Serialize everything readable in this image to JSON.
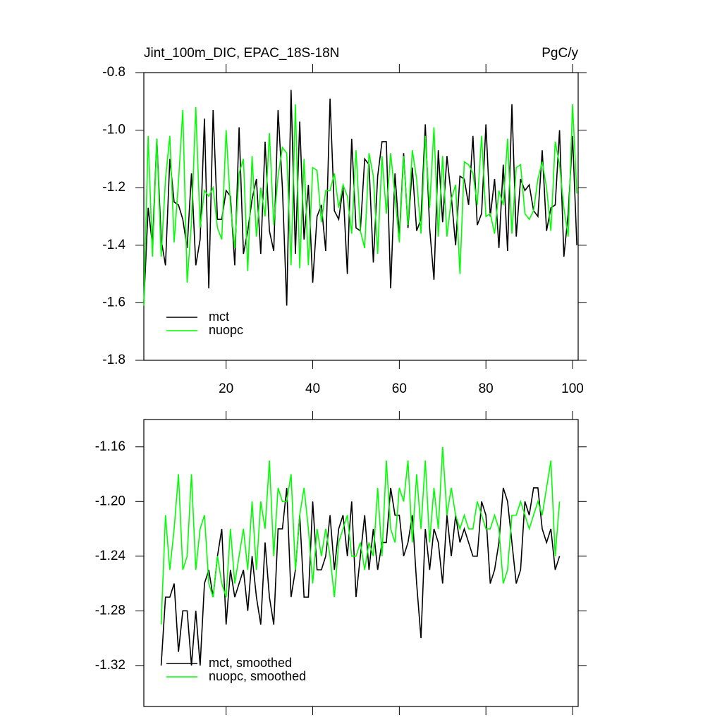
{
  "chart_data": [
    {
      "type": "line",
      "title": "Jint_100m_DIC, EPAC_18S-18N",
      "right_title": "PgC/y",
      "x": [
        1,
        2,
        3,
        4,
        5,
        6,
        7,
        8,
        9,
        10,
        11,
        12,
        13,
        14,
        15,
        16,
        17,
        18,
        19,
        20,
        21,
        22,
        23,
        24,
        25,
        26,
        27,
        28,
        29,
        30,
        31,
        32,
        33,
        34,
        35,
        36,
        37,
        38,
        39,
        40,
        41,
        42,
        43,
        44,
        45,
        46,
        47,
        48,
        49,
        50,
        51,
        52,
        53,
        54,
        55,
        56,
        57,
        58,
        59,
        60,
        61,
        62,
        63,
        64,
        65,
        66,
        67,
        68,
        69,
        70,
        71,
        72,
        73,
        74,
        75,
        76,
        77,
        78,
        79,
        80,
        81,
        82,
        83,
        84,
        85,
        86,
        87,
        88,
        89,
        90,
        91,
        92,
        93,
        94,
        95,
        96,
        97,
        98,
        99,
        100,
        101
      ],
      "series": [
        {
          "name": "mct",
          "color": "#000000",
          "values": [
            -1.6,
            -1.27,
            -1.4,
            -1.03,
            -1.38,
            -1.47,
            -1.1,
            -1.25,
            -1.26,
            -1.31,
            -1.41,
            -1.15,
            -1.47,
            -1.38,
            -0.96,
            -1.55,
            -0.93,
            -1.31,
            -1.31,
            -1.21,
            -1.23,
            -1.47,
            -0.99,
            -1.43,
            -1.35,
            -1.24,
            -1.17,
            -1.43,
            -1.04,
            -1.35,
            -1.42,
            -0.93,
            -1.2,
            -1.61,
            -0.86,
            -1.43,
            -0.97,
            -1.38,
            -1.19,
            -1.53,
            -1.3,
            -1.26,
            -1.42,
            -0.89,
            -1.28,
            -1.31,
            -1.2,
            -1.5,
            -1.03,
            -1.34,
            -1.35,
            -1.1,
            -1.12,
            -1.46,
            -1.16,
            -1.04,
            -1.04,
            -1.55,
            -1.15,
            -1.37,
            -1.08,
            -1.34,
            -1.13,
            -1.35,
            -1.31,
            -0.98,
            -1.34,
            -1.52,
            -1.07,
            -1.32,
            -1.09,
            -1.23,
            -1.4,
            -1.16,
            -1.17,
            -1.26,
            -1.02,
            -1.33,
            -1.29,
            -0.98,
            -1.3,
            -1.17,
            -1.41,
            -1.12,
            -1.42,
            -0.91,
            -1.37,
            -1.17,
            -1.21,
            -1.19,
            -1.28,
            -1.3,
            -1.07,
            -1.35,
            -1.27,
            -1.26,
            -1.0,
            -1.44,
            -1.29,
            -1.02,
            -1.4
          ]
        },
        {
          "name": "nuopc",
          "color": "#00ff00",
          "values": [
            -1.61,
            -1.02,
            -1.44,
            -1.03,
            -1.44,
            -1.17,
            -1.02,
            -1.39,
            -1.18,
            -0.93,
            -1.53,
            -1.32,
            -0.92,
            -1.34,
            -1.21,
            -1.23,
            -1.2,
            -1.34,
            -1.38,
            -1.0,
            -1.26,
            -1.41,
            -1.15,
            -1.1,
            -1.49,
            -1.09,
            -1.37,
            -1.2,
            -1.3,
            -1.01,
            -1.33,
            -1.16,
            -1.06,
            -1.08,
            -1.47,
            -0.91,
            -1.48,
            -1.1,
            -1.47,
            -1.13,
            -1.14,
            -1.32,
            -1.21,
            -1.21,
            -1.15,
            -1.27,
            -1.19,
            -1.23,
            -1.36,
            -1.07,
            -1.35,
            -1.41,
            -1.08,
            -1.16,
            -1.43,
            -1.09,
            -1.29,
            -1.08,
            -1.23,
            -1.39,
            -1.09,
            -1.33,
            -1.07,
            -1.17,
            -1.36,
            -1.02,
            -1.27,
            -0.99,
            -1.37,
            -1.09,
            -1.37,
            -1.24,
            -1.19,
            -1.5,
            -1.11,
            -1.12,
            -1.15,
            -1.26,
            -1.02,
            -1.3,
            -1.29,
            -1.36,
            -1.21,
            -1.26,
            -1.03,
            -1.36,
            -1.13,
            -1.12,
            -1.29,
            -1.31,
            -1.28,
            -1.17,
            -1.11,
            -1.2,
            -1.35,
            -1.04,
            -1.12,
            -1.27,
            -1.37,
            -0.91,
            -1.22
          ]
        }
      ],
      "xlim": [
        1,
        101.3
      ],
      "xticks": [
        20,
        40,
        60,
        80,
        100
      ],
      "x_tick_labels": true,
      "ylim": [
        -1.8,
        -0.8
      ],
      "yticks": [
        -1.8,
        -1.6,
        -1.4,
        -1.2,
        {
          "value": -1.0,
          "label": "-1.0"
        },
        -0.8
      ],
      "grid": false,
      "legend": "lower left"
    },
    {
      "type": "line",
      "x": [
        5,
        6,
        7,
        8,
        9,
        10,
        11,
        12,
        13,
        14,
        15,
        16,
        17,
        18,
        19,
        20,
        21,
        22,
        23,
        24,
        25,
        26,
        27,
        28,
        29,
        30,
        31,
        32,
        33,
        34,
        35,
        36,
        37,
        38,
        39,
        40,
        41,
        42,
        43,
        44,
        45,
        46,
        47,
        48,
        49,
        50,
        51,
        52,
        53,
        54,
        55,
        56,
        57,
        58,
        59,
        60,
        61,
        62,
        63,
        64,
        65,
        66,
        67,
        68,
        69,
        70,
        71,
        72,
        73,
        74,
        75,
        76,
        77,
        78,
        79,
        80,
        81,
        82,
        83,
        84,
        85,
        86,
        87,
        88,
        89,
        90,
        91,
        92,
        93,
        94,
        95,
        96,
        97
      ],
      "series": [
        {
          "name": "mct, smoothed",
          "color": "#000000",
          "values": [
            -1.32,
            -1.27,
            -1.27,
            -1.26,
            -1.31,
            -1.28,
            -1.28,
            -1.32,
            -1.28,
            -1.32,
            -1.26,
            -1.25,
            -1.27,
            -1.24,
            -1.22,
            -1.29,
            -1.25,
            -1.27,
            -1.26,
            -1.25,
            -1.28,
            -1.24,
            -1.27,
            -1.29,
            -1.23,
            -1.27,
            -1.29,
            -1.22,
            -1.22,
            -1.19,
            -1.27,
            -1.25,
            -1.21,
            -1.27,
            -1.27,
            -1.2,
            -1.25,
            -1.25,
            -1.24,
            -1.21,
            -1.25,
            -1.22,
            -1.21,
            -1.24,
            -1.2,
            -1.27,
            -1.24,
            -1.21,
            -1.25,
            -1.22,
            -1.25,
            -1.23,
            -1.23,
            -1.19,
            -1.21,
            -1.21,
            -1.24,
            -1.23,
            -1.21,
            -1.26,
            -1.3,
            -1.22,
            -1.25,
            -1.22,
            -1.23,
            -1.26,
            -1.21,
            -1.24,
            -1.21,
            -1.23,
            -1.22,
            -1.23,
            -1.24,
            -1.24,
            -1.2,
            -1.21,
            -1.26,
            -1.25,
            -1.23,
            -1.19,
            -1.2,
            -1.23,
            -1.26,
            -1.25,
            -1.2,
            -1.21,
            -1.19,
            -1.19,
            -1.22,
            -1.23,
            -1.22,
            -1.25,
            -1.24
          ]
        },
        {
          "name": "nuopc, smoothed",
          "color": "#00ff00",
          "values": [
            -1.29,
            -1.21,
            -1.25,
            -1.22,
            -1.18,
            -1.25,
            -1.24,
            -1.18,
            -1.25,
            -1.22,
            -1.21,
            -1.26,
            -1.27,
            -1.24,
            -1.26,
            -1.27,
            -1.22,
            -1.26,
            -1.24,
            -1.22,
            -1.25,
            -1.2,
            -1.25,
            -1.2,
            -1.22,
            -1.17,
            -1.24,
            -1.19,
            -1.2,
            -1.2,
            -1.18,
            -1.25,
            -1.21,
            -1.19,
            -1.22,
            -1.26,
            -1.22,
            -1.24,
            -1.22,
            -1.24,
            -1.27,
            -1.23,
            -1.22,
            -1.21,
            -1.24,
            -1.24,
            -1.23,
            -1.25,
            -1.23,
            -1.24,
            -1.19,
            -1.24,
            -1.17,
            -1.22,
            -1.23,
            -1.19,
            -1.2,
            -1.17,
            -1.23,
            -1.18,
            -1.22,
            -1.17,
            -1.23,
            -1.19,
            -1.22,
            -1.16,
            -1.21,
            -1.19,
            -1.21,
            -1.22,
            -1.21,
            -1.22,
            -1.22,
            -1.2,
            -1.21,
            -1.22,
            -1.22,
            -1.21,
            -1.22,
            -1.26,
            -1.25,
            -1.21,
            -1.21,
            -1.2,
            -1.21,
            -1.22,
            -1.21,
            -1.2,
            -1.21,
            -1.19,
            -1.17,
            -1.24,
            -1.2
          ]
        }
      ],
      "xlim": [
        1,
        101.3
      ],
      "xticks": [
        20,
        40,
        60,
        80,
        100
      ],
      "x_tick_labels": false,
      "ylim": [
        -1.35,
        -1.14
      ],
      "yticks": [
        -1.32,
        -1.28,
        -1.24,
        {
          "value": -1.2,
          "label": "-1.20"
        },
        -1.16
      ],
      "grid": false,
      "legend": "lower left"
    }
  ]
}
